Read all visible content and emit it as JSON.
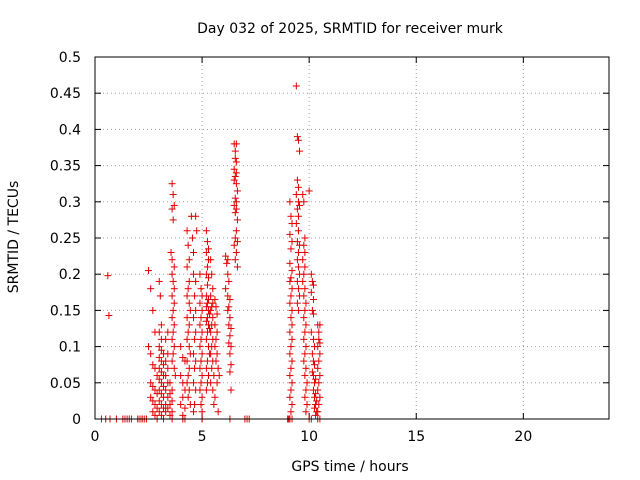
{
  "chart_data": {
    "type": "scatter",
    "title": "Day 032 of 2025, SRMTID for receiver murk",
    "xlabel": "GPS time / hours",
    "ylabel": "SRMTID / TECUs",
    "xlim": [
      0,
      24
    ],
    "ylim": [
      0,
      0.5
    ],
    "xticks": [
      "0",
      "5",
      "10",
      "15",
      "20"
    ],
    "yticks": [
      "0",
      "0.05",
      "0.1",
      "0.15",
      "0.2",
      "0.25",
      "0.3",
      "0.35",
      "0.4",
      "0.45",
      "0.5"
    ],
    "grid": true,
    "series_color": "#e00000",
    "marker": "plus",
    "points": [
      [
        0.6,
        0.198
      ],
      [
        0.65,
        0.143
      ],
      [
        0.3,
        0
      ],
      [
        0.5,
        0
      ],
      [
        0.7,
        0
      ],
      [
        1.0,
        0
      ],
      [
        1.3,
        0
      ],
      [
        1.4,
        0
      ],
      [
        1.5,
        0
      ],
      [
        1.6,
        0
      ],
      [
        1.7,
        0
      ],
      [
        2.0,
        0
      ],
      [
        2.1,
        0
      ],
      [
        2.2,
        0
      ],
      [
        2.3,
        0
      ],
      [
        2.4,
        0
      ],
      [
        2.5,
        0.205
      ],
      [
        2.6,
        0.18
      ],
      [
        2.7,
        0.15
      ],
      [
        2.8,
        0.12
      ],
      [
        2.5,
        0.1
      ],
      [
        2.6,
        0.09
      ],
      [
        2.7,
        0.075
      ],
      [
        2.8,
        0.07
      ],
      [
        2.9,
        0.06
      ],
      [
        2.6,
        0.05
      ],
      [
        2.7,
        0.045
      ],
      [
        2.8,
        0.04
      ],
      [
        2.9,
        0.035
      ],
      [
        2.6,
        0.03
      ],
      [
        2.7,
        0.025
      ],
      [
        2.8,
        0.02
      ],
      [
        2.9,
        0.015
      ],
      [
        2.7,
        0.01
      ],
      [
        2.8,
        0.005
      ],
      [
        2.9,
        0.0
      ],
      [
        3.0,
        0.19
      ],
      [
        3.05,
        0.17
      ],
      [
        3.1,
        0.13
      ],
      [
        3.0,
        0.12
      ],
      [
        3.1,
        0.11
      ],
      [
        3.0,
        0.1
      ],
      [
        3.1,
        0.095
      ],
      [
        3.2,
        0.09
      ],
      [
        3.0,
        0.085
      ],
      [
        3.1,
        0.08
      ],
      [
        3.2,
        0.075
      ],
      [
        3.0,
        0.07
      ],
      [
        3.1,
        0.065
      ],
      [
        3.2,
        0.06
      ],
      [
        3.0,
        0.055
      ],
      [
        3.1,
        0.05
      ],
      [
        3.2,
        0.045
      ],
      [
        3.0,
        0.04
      ],
      [
        3.1,
        0.035
      ],
      [
        3.2,
        0.03
      ],
      [
        3.0,
        0.025
      ],
      [
        3.1,
        0.02
      ],
      [
        3.2,
        0.015
      ],
      [
        3.0,
        0.01
      ],
      [
        3.1,
        0.005
      ],
      [
        3.2,
        0.0
      ],
      [
        3.3,
        0.01
      ],
      [
        3.3,
        0.02
      ],
      [
        3.3,
        0.04
      ],
      [
        3.3,
        0.06
      ],
      [
        3.3,
        0.08
      ],
      [
        3.3,
        0.11
      ],
      [
        3.4,
        0.12
      ],
      [
        3.4,
        0.09
      ],
      [
        3.4,
        0.07
      ],
      [
        3.4,
        0.05
      ],
      [
        3.4,
        0.03
      ],
      [
        3.4,
        0.015
      ],
      [
        3.5,
        0.05
      ],
      [
        3.5,
        0.035
      ],
      [
        3.5,
        0.02
      ],
      [
        3.5,
        0.005
      ],
      [
        3.6,
        0.04
      ],
      [
        3.6,
        0.025
      ],
      [
        3.6,
        0.01
      ],
      [
        3.6,
        0.325
      ],
      [
        3.65,
        0.31
      ],
      [
        3.7,
        0.295
      ],
      [
        3.6,
        0.29
      ],
      [
        3.65,
        0.275
      ],
      [
        3.55,
        0.23
      ],
      [
        3.6,
        0.22
      ],
      [
        3.7,
        0.21
      ],
      [
        3.6,
        0.2
      ],
      [
        3.65,
        0.19
      ],
      [
        3.7,
        0.18
      ],
      [
        3.6,
        0.17
      ],
      [
        3.7,
        0.16
      ],
      [
        3.65,
        0.15
      ],
      [
        3.6,
        0.14
      ],
      [
        3.7,
        0.13
      ],
      [
        3.65,
        0.12
      ],
      [
        3.6,
        0.11
      ],
      [
        3.7,
        0.1
      ],
      [
        3.65,
        0.09
      ],
      [
        3.6,
        0.08
      ],
      [
        3.7,
        0.07
      ],
      [
        3.75,
        0.06
      ],
      [
        4.0,
        0.1
      ],
      [
        4.1,
        0.085
      ],
      [
        4.2,
        0.08
      ],
      [
        4.0,
        0.06
      ],
      [
        4.1,
        0.05
      ],
      [
        4.2,
        0.04
      ],
      [
        4.1,
        0.03
      ],
      [
        4.0,
        0.02
      ],
      [
        4.2,
        0.015
      ],
      [
        4.1,
        0.005
      ],
      [
        4.3,
        0.26
      ],
      [
        4.35,
        0.24
      ],
      [
        4.4,
        0.22
      ],
      [
        4.3,
        0.21
      ],
      [
        4.4,
        0.19
      ],
      [
        4.35,
        0.18
      ],
      [
        4.3,
        0.17
      ],
      [
        4.4,
        0.16
      ],
      [
        4.45,
        0.15
      ],
      [
        4.3,
        0.14
      ],
      [
        4.4,
        0.13
      ],
      [
        4.35,
        0.12
      ],
      [
        4.3,
        0.11
      ],
      [
        4.4,
        0.1
      ],
      [
        4.45,
        0.09
      ],
      [
        4.3,
        0.08
      ],
      [
        4.4,
        0.07
      ],
      [
        4.35,
        0.06
      ],
      [
        4.3,
        0.05
      ],
      [
        4.4,
        0.04
      ],
      [
        4.35,
        0.03
      ],
      [
        4.45,
        0.02
      ],
      [
        4.5,
        0.28
      ],
      [
        4.55,
        0.25
      ],
      [
        4.6,
        0.23
      ],
      [
        4.7,
        0.28
      ],
      [
        4.75,
        0.26
      ],
      [
        4.6,
        0.2
      ],
      [
        4.7,
        0.19
      ],
      [
        4.65,
        0.17
      ],
      [
        4.7,
        0.15
      ],
      [
        4.6,
        0.14
      ],
      [
        4.7,
        0.12
      ],
      [
        4.65,
        0.11
      ],
      [
        4.6,
        0.09
      ],
      [
        4.7,
        0.08
      ],
      [
        4.65,
        0.07
      ],
      [
        4.6,
        0.05
      ],
      [
        4.7,
        0.04
      ],
      [
        4.65,
        0.02
      ],
      [
        4.6,
        0.01
      ],
      [
        4.9,
        0.2
      ],
      [
        4.95,
        0.18
      ],
      [
        5.0,
        0.17
      ],
      [
        4.9,
        0.16
      ],
      [
        5.0,
        0.15
      ],
      [
        4.95,
        0.14
      ],
      [
        4.9,
        0.13
      ],
      [
        5.0,
        0.12
      ],
      [
        4.95,
        0.11
      ],
      [
        4.9,
        0.1
      ],
      [
        5.0,
        0.09
      ],
      [
        4.95,
        0.08
      ],
      [
        4.9,
        0.07
      ],
      [
        5.0,
        0.06
      ],
      [
        4.95,
        0.05
      ],
      [
        4.9,
        0.04
      ],
      [
        5.0,
        0.03
      ],
      [
        4.95,
        0.02
      ],
      [
        5.0,
        0.01
      ],
      [
        5.0,
        0.0
      ],
      [
        5.2,
        0.26
      ],
      [
        5.25,
        0.245
      ],
      [
        5.3,
        0.235
      ],
      [
        5.2,
        0.23
      ],
      [
        5.3,
        0.22
      ],
      [
        5.25,
        0.21
      ],
      [
        5.2,
        0.2
      ],
      [
        5.3,
        0.195
      ],
      [
        5.25,
        0.185
      ],
      [
        5.2,
        0.17
      ],
      [
        5.3,
        0.165
      ],
      [
        5.25,
        0.16
      ],
      [
        5.2,
        0.155
      ],
      [
        5.3,
        0.15
      ],
      [
        5.35,
        0.145
      ],
      [
        5.25,
        0.14
      ],
      [
        5.2,
        0.135
      ],
      [
        5.3,
        0.13
      ],
      [
        5.35,
        0.125
      ],
      [
        5.25,
        0.12
      ],
      [
        5.2,
        0.11
      ],
      [
        5.3,
        0.1
      ],
      [
        5.35,
        0.09
      ],
      [
        5.25,
        0.08
      ],
      [
        5.2,
        0.07
      ],
      [
        5.3,
        0.06
      ],
      [
        5.25,
        0.05
      ],
      [
        5.2,
        0.04
      ],
      [
        5.4,
        0.22
      ],
      [
        5.45,
        0.2
      ],
      [
        5.5,
        0.18
      ],
      [
        5.4,
        0.17
      ],
      [
        5.5,
        0.16
      ],
      [
        5.45,
        0.155
      ],
      [
        5.4,
        0.15
      ],
      [
        5.5,
        0.14
      ],
      [
        5.45,
        0.13
      ],
      [
        5.4,
        0.12
      ],
      [
        5.5,
        0.11
      ],
      [
        5.45,
        0.1
      ],
      [
        5.4,
        0.09
      ],
      [
        5.5,
        0.08
      ],
      [
        5.45,
        0.07
      ],
      [
        5.55,
        0.06
      ],
      [
        5.4,
        0.05
      ],
      [
        5.5,
        0.04
      ],
      [
        5.6,
        0.03
      ],
      [
        5.55,
        0.02
      ],
      [
        5.6,
        0.165
      ],
      [
        5.65,
        0.155
      ],
      [
        5.7,
        0.145
      ],
      [
        5.6,
        0.13
      ],
      [
        5.7,
        0.12
      ],
      [
        5.65,
        0.11
      ],
      [
        5.6,
        0.1
      ],
      [
        5.7,
        0.09
      ],
      [
        5.65,
        0.08
      ],
      [
        5.75,
        0.07
      ],
      [
        5.8,
        0.06
      ],
      [
        5.7,
        0.05
      ],
      [
        5.75,
        0.01
      ],
      [
        6.1,
        0.225
      ],
      [
        6.2,
        0.22
      ],
      [
        6.15,
        0.215
      ],
      [
        6.2,
        0.2
      ],
      [
        6.25,
        0.19
      ],
      [
        6.1,
        0.18
      ],
      [
        6.2,
        0.17
      ],
      [
        6.3,
        0.165
      ],
      [
        6.25,
        0.155
      ],
      [
        6.2,
        0.15
      ],
      [
        6.3,
        0.14
      ],
      [
        6.25,
        0.13
      ],
      [
        6.35,
        0.125
      ],
      [
        6.3,
        0.115
      ],
      [
        6.25,
        0.105
      ],
      [
        6.35,
        0.1
      ],
      [
        6.3,
        0.09
      ],
      [
        6.35,
        0.075
      ],
      [
        6.3,
        0.065
      ],
      [
        6.35,
        0.04
      ],
      [
        6.5,
        0.38
      ],
      [
        6.55,
        0.37
      ],
      [
        6.6,
        0.38
      ],
      [
        6.55,
        0.36
      ],
      [
        6.6,
        0.355
      ],
      [
        6.5,
        0.345
      ],
      [
        6.6,
        0.34
      ],
      [
        6.55,
        0.335
      ],
      [
        6.5,
        0.33
      ],
      [
        6.6,
        0.325
      ],
      [
        6.65,
        0.315
      ],
      [
        6.55,
        0.305
      ],
      [
        6.6,
        0.3
      ],
      [
        6.5,
        0.295
      ],
      [
        6.6,
        0.29
      ],
      [
        6.55,
        0.285
      ],
      [
        6.65,
        0.275
      ],
      [
        6.6,
        0.26
      ],
      [
        6.55,
        0.25
      ],
      [
        6.65,
        0.245
      ],
      [
        6.5,
        0.24
      ],
      [
        6.6,
        0.23
      ],
      [
        6.55,
        0.22
      ],
      [
        6.65,
        0.21
      ],
      [
        9.1,
        0.3
      ],
      [
        9.15,
        0.28
      ],
      [
        9.2,
        0.27
      ],
      [
        9.1,
        0.255
      ],
      [
        9.2,
        0.245
      ],
      [
        9.15,
        0.235
      ],
      [
        9.1,
        0.215
      ],
      [
        9.2,
        0.205
      ],
      [
        9.15,
        0.195
      ],
      [
        9.1,
        0.19
      ],
      [
        9.2,
        0.18
      ],
      [
        9.15,
        0.17
      ],
      [
        9.1,
        0.16
      ],
      [
        9.2,
        0.15
      ],
      [
        9.15,
        0.14
      ],
      [
        9.2,
        0.13
      ],
      [
        9.1,
        0.12
      ],
      [
        9.2,
        0.11
      ],
      [
        9.15,
        0.1
      ],
      [
        9.1,
        0.09
      ],
      [
        9.2,
        0.08
      ],
      [
        9.15,
        0.07
      ],
      [
        9.1,
        0.06
      ],
      [
        9.2,
        0.05
      ],
      [
        9.15,
        0.04
      ],
      [
        9.1,
        0.03
      ],
      [
        9.2,
        0.02
      ],
      [
        9.15,
        0.01
      ],
      [
        9.1,
        0.0
      ],
      [
        9.0,
        0.0
      ],
      [
        9.2,
        0.0
      ],
      [
        9.4,
        0.46
      ],
      [
        9.45,
        0.39
      ],
      [
        9.5,
        0.385
      ],
      [
        9.55,
        0.37
      ],
      [
        9.45,
        0.33
      ],
      [
        9.5,
        0.32
      ],
      [
        9.4,
        0.31
      ],
      [
        9.5,
        0.3
      ],
      [
        9.55,
        0.295
      ],
      [
        9.45,
        0.29
      ],
      [
        9.5,
        0.28
      ],
      [
        9.4,
        0.27
      ],
      [
        9.5,
        0.26
      ],
      [
        9.45,
        0.245
      ],
      [
        9.55,
        0.24
      ],
      [
        9.5,
        0.23
      ],
      [
        9.45,
        0.22
      ],
      [
        9.5,
        0.21
      ],
      [
        9.55,
        0.2
      ],
      [
        9.45,
        0.19
      ],
      [
        9.5,
        0.18
      ],
      [
        9.55,
        0.17
      ],
      [
        9.45,
        0.16
      ],
      [
        9.5,
        0.15
      ],
      [
        9.7,
        0.31
      ],
      [
        9.75,
        0.3
      ],
      [
        9.8,
        0.25
      ],
      [
        9.75,
        0.24
      ],
      [
        9.8,
        0.23
      ],
      [
        9.7,
        0.22
      ],
      [
        9.8,
        0.21
      ],
      [
        9.75,
        0.2
      ],
      [
        9.7,
        0.19
      ],
      [
        9.8,
        0.18
      ],
      [
        9.75,
        0.17
      ],
      [
        9.85,
        0.16
      ],
      [
        9.8,
        0.15
      ],
      [
        9.75,
        0.14
      ],
      [
        9.85,
        0.13
      ],
      [
        9.8,
        0.12
      ],
      [
        9.75,
        0.11
      ],
      [
        9.85,
        0.1
      ],
      [
        9.8,
        0.09
      ],
      [
        9.75,
        0.08
      ],
      [
        9.85,
        0.07
      ],
      [
        9.8,
        0.06
      ],
      [
        9.9,
        0.05
      ],
      [
        9.85,
        0.04
      ],
      [
        9.8,
        0.03
      ],
      [
        9.9,
        0.02
      ],
      [
        9.85,
        0.01
      ],
      [
        10.0,
        0.315
      ],
      [
        10.1,
        0.2
      ],
      [
        10.15,
        0.19
      ],
      [
        10.2,
        0.185
      ],
      [
        10.1,
        0.175
      ],
      [
        10.2,
        0.165
      ],
      [
        10.15,
        0.15
      ],
      [
        10.2,
        0.145
      ],
      [
        10.1,
        0.12
      ],
      [
        10.2,
        0.11
      ],
      [
        10.25,
        0.1
      ],
      [
        10.15,
        0.09
      ],
      [
        10.2,
        0.08
      ],
      [
        10.25,
        0.075
      ],
      [
        10.15,
        0.065
      ],
      [
        10.2,
        0.06
      ],
      [
        10.3,
        0.055
      ],
      [
        10.25,
        0.05
      ],
      [
        10.2,
        0.04
      ],
      [
        10.3,
        0.035
      ],
      [
        10.25,
        0.03
      ],
      [
        10.35,
        0.025
      ],
      [
        10.3,
        0.02
      ],
      [
        10.25,
        0.015
      ],
      [
        10.35,
        0.01
      ],
      [
        10.3,
        0.005
      ],
      [
        10.4,
        0.0
      ],
      [
        10.5,
        0.0
      ],
      [
        10.4,
        0.13
      ],
      [
        10.45,
        0.12
      ],
      [
        10.5,
        0.13
      ],
      [
        10.45,
        0.11
      ],
      [
        10.5,
        0.105
      ],
      [
        10.4,
        0.1
      ],
      [
        10.5,
        0.09
      ],
      [
        10.45,
        0.08
      ],
      [
        10.4,
        0.07
      ],
      [
        10.5,
        0.06
      ],
      [
        10.45,
        0.05
      ],
      [
        10.4,
        0.04
      ],
      [
        10.5,
        0.03
      ],
      [
        10.45,
        0.02
      ],
      [
        10.4,
        0.01
      ],
      [
        2.0,
        0
      ],
      [
        2.2,
        0
      ],
      [
        3.6,
        0
      ],
      [
        4.1,
        0
      ],
      [
        4.2,
        0
      ],
      [
        5.0,
        0
      ],
      [
        6.3,
        0
      ],
      [
        7.0,
        0
      ],
      [
        7.1,
        0
      ],
      [
        7.2,
        0
      ],
      [
        9.0,
        0
      ],
      [
        9.05,
        0
      ],
      [
        10.0,
        0
      ],
      [
        10.1,
        0
      ]
    ]
  }
}
